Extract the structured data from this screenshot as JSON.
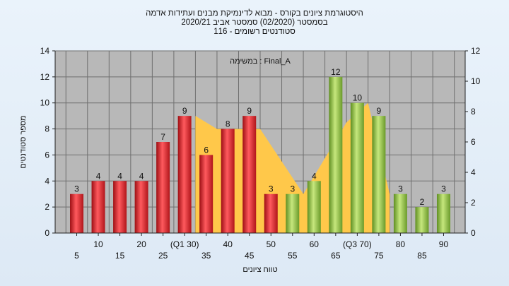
{
  "chart_data": {
    "type": "bar",
    "title": [
      "היסטוגרמת ציונים בקורס - מבוא לדינמיקת מבנים ועתידות אדמה",
      "בסמסטר  (02/2020)  סמסטר אביב 2020/21",
      "סטודנטים רשומים - 116"
    ],
    "annotation": "במשימה : Final_A",
    "xlabel": "טווח ציונים",
    "ylabel": "מספר סטודנטים",
    "ylim": [
      0,
      14
    ],
    "yticks": [
      0,
      2,
      4,
      6,
      8,
      10,
      12,
      14
    ],
    "y2lim": [
      0,
      12
    ],
    "y2ticks": [
      0,
      2,
      4,
      6,
      8,
      10,
      12
    ],
    "grid": true,
    "categories": [
      "5",
      "10",
      "15",
      "20",
      "25",
      "(Q1 30)",
      "35",
      "40",
      "45",
      "50",
      "55",
      "60",
      "65",
      "(Q3 70)",
      "75",
      "80",
      "85",
      "90"
    ],
    "values": [
      3,
      4,
      4,
      4,
      7,
      9,
      6,
      8,
      9,
      3,
      3,
      4,
      12,
      10,
      9,
      3,
      2,
      3
    ],
    "bar_colors": [
      "#e8262b",
      "#e8262b",
      "#e8262b",
      "#e8262b",
      "#e8262b",
      "#e8262b",
      "#e8262b",
      "#e8262b",
      "#e8262b",
      "#e8262b",
      "#8dc63f",
      "#8dc63f",
      "#8dc63f",
      "#8dc63f",
      "#8dc63f",
      "#8dc63f",
      "#8dc63f",
      "#8dc63f"
    ],
    "area": {
      "color": "#ffc84a",
      "points": [
        [
          5.5,
          9
        ],
        [
          6.5,
          8
        ],
        [
          7.5,
          8
        ],
        [
          8.5,
          8
        ],
        [
          10.5,
          3
        ],
        [
          12.5,
          8.5
        ],
        [
          13.5,
          10
        ],
        [
          14.5,
          3
        ]
      ]
    }
  },
  "colors": {
    "plot_bg": "#b8b8b8",
    "grid": "#6f6f6f",
    "red_bar": "#e8262b",
    "green_bar": "#8dc63f",
    "area": "#ffc84a"
  }
}
